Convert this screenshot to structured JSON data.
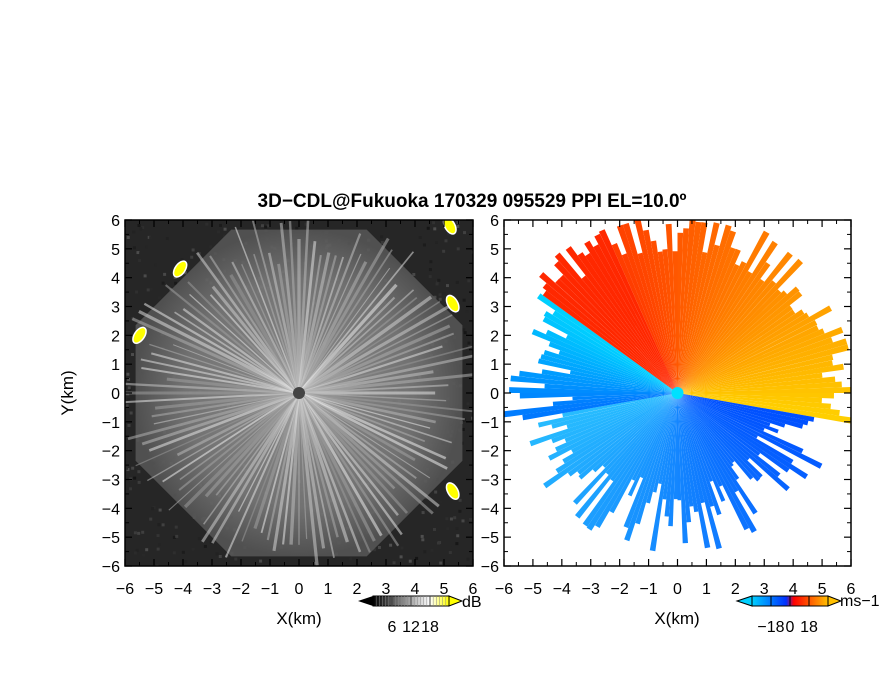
{
  "figure": {
    "title": "3D−CDL@Fukuoka 170329 095529 PPI EL=10.0º"
  },
  "chart_data": [
    {
      "type": "heatmap",
      "panel": "left",
      "quantity_label": "dB",
      "xlabel": "X(km)",
      "ylabel": "Y(km)",
      "xlim": [
        -6,
        6
      ],
      "ylim": [
        -6,
        6
      ],
      "x_ticks": [
        "−6",
        "−5",
        "−4",
        "−3",
        "−2",
        "−1",
        "0",
        "1",
        "2",
        "3",
        "4",
        "5",
        "6"
      ],
      "y_ticks": [
        "6",
        "5",
        "4",
        "3",
        "2",
        "1",
        "0",
        "−1",
        "−2",
        "−3",
        "−4",
        "−5",
        "−6"
      ],
      "colorbar": {
        "unit": "dB",
        "ticks": [
          "6",
          "12",
          "18"
        ],
        "range": [
          0,
          24
        ],
        "colors": [
          "#000000",
          "#ffffff",
          "#ffff00"
        ]
      },
      "background": "#222222",
      "radar_center": [
        0,
        0
      ],
      "radar_range_km": 6,
      "high_echo_regions": [
        {
          "x": -4.1,
          "y": 4.3
        },
        {
          "x": -5.5,
          "y": 2.0
        },
        {
          "x": 5.3,
          "y": 3.1
        },
        {
          "x": 5.3,
          "y": -3.4
        },
        {
          "x": 5.2,
          "y": 5.8
        }
      ]
    },
    {
      "type": "heatmap",
      "panel": "right",
      "quantity_label": "ms−1",
      "xlabel": "X(km)",
      "ylabel": "",
      "xlim": [
        -6,
        6
      ],
      "ylim": [
        -6,
        6
      ],
      "x_ticks": [
        "−6",
        "−5",
        "−4",
        "−3",
        "−2",
        "−1",
        "0",
        "1",
        "2",
        "3",
        "4",
        "5",
        "6"
      ],
      "y_ticks": [
        "6",
        "5",
        "4",
        "3",
        "2",
        "1",
        "0",
        "−1",
        "−2",
        "−3",
        "−4",
        "−5",
        "−6"
      ],
      "colorbar": {
        "unit": "ms−1",
        "ticks": [
          "−18",
          "0",
          "18"
        ],
        "range": [
          -24,
          24
        ],
        "colors": [
          "#00c8ff",
          "#0040ff",
          "#ff0000",
          "#ffc000"
        ]
      },
      "radar_center": [
        0,
        0
      ],
      "velocity_field": {
        "toward_sector_deg": [
          100,
          290
        ],
        "away_sector_deg": [
          290,
          460
        ],
        "toward_mean_ms": -16,
        "away_mean_ms": 14
      }
    }
  ]
}
